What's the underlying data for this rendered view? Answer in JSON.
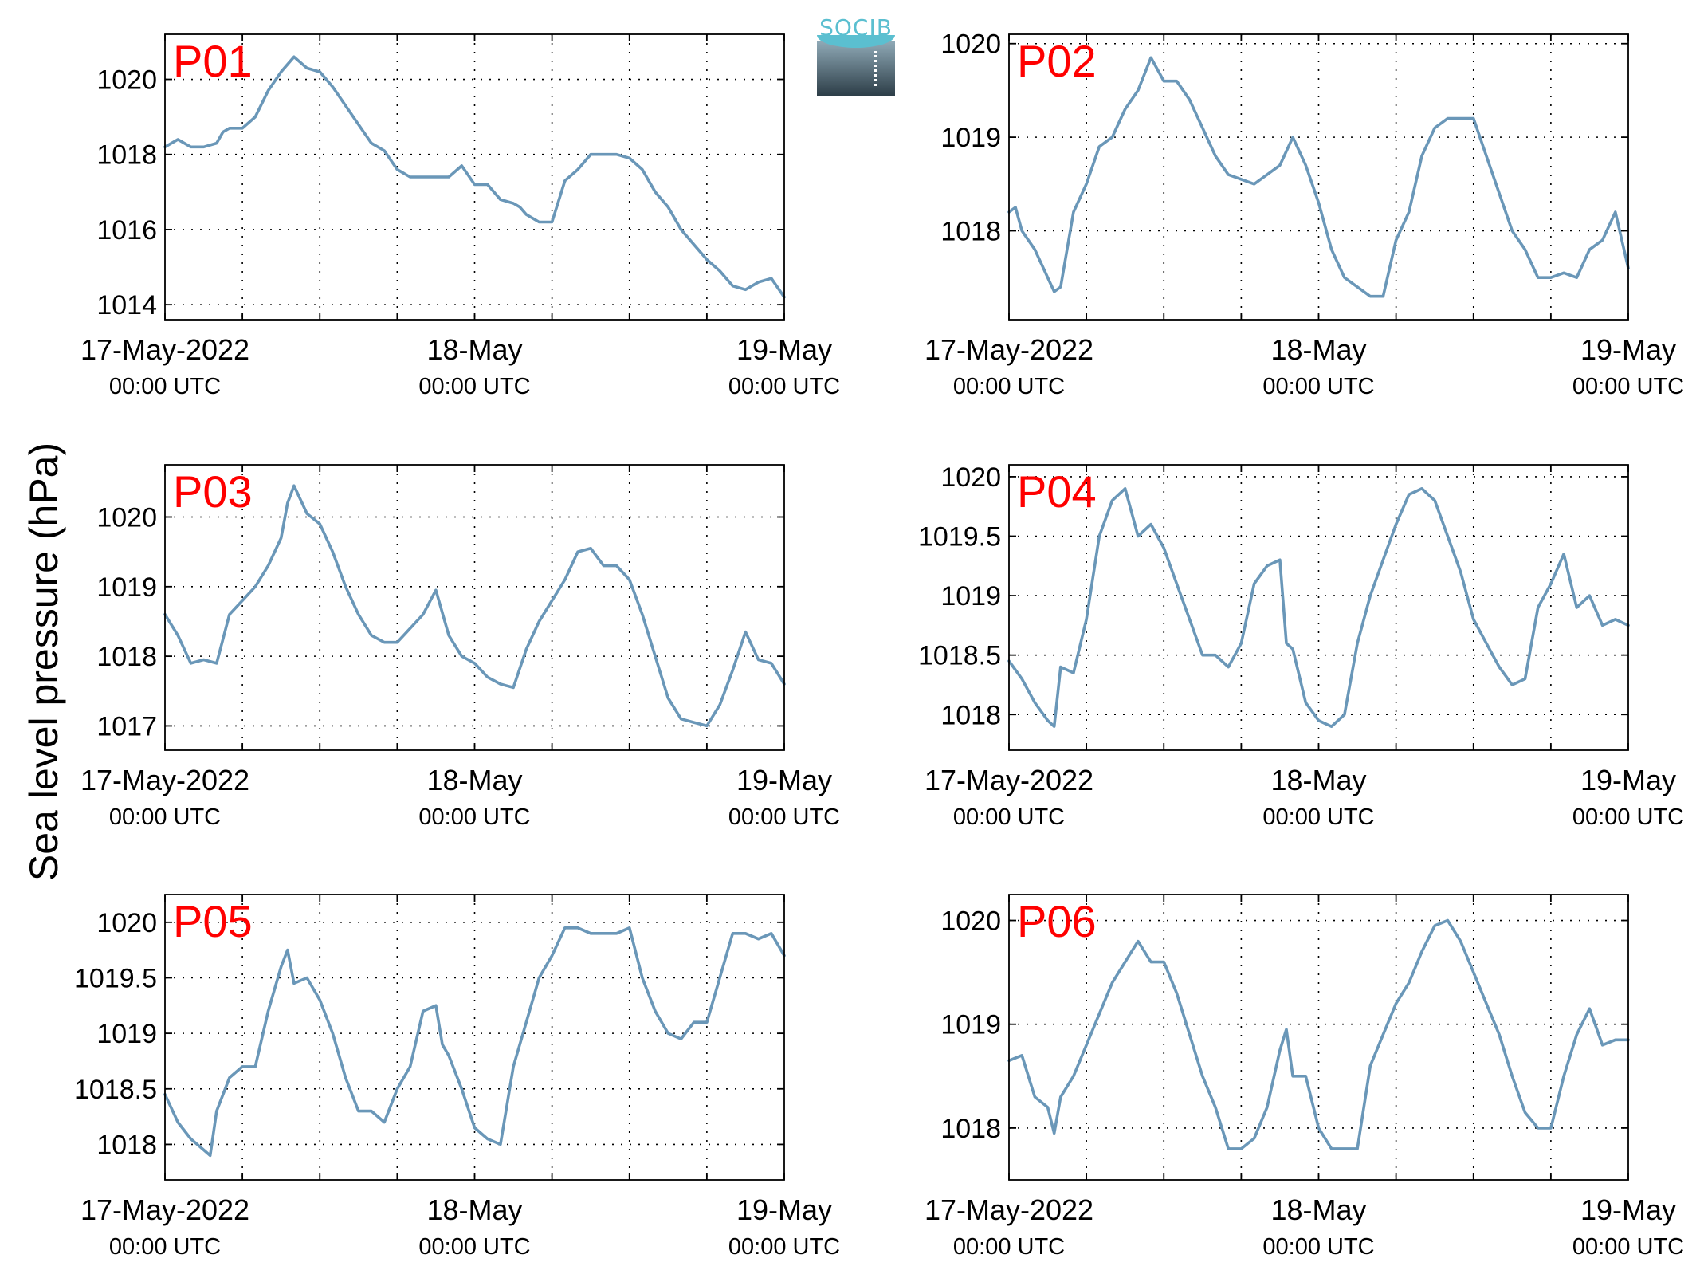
{
  "figure": {
    "ylabel": "Sea level pressure (hPa)",
    "line_color": "#6a97b8",
    "label_color": "#ff0000",
    "logo_text": "SOCIB",
    "logo_colors": {
      "accent": "#5bbfd0",
      "dark": "#2d3e48",
      "light": "#8fa9b6"
    }
  },
  "chart_data": [
    {
      "type": "line",
      "title": "P01",
      "xlim": [
        0,
        48
      ],
      "ylim": [
        1013.6,
        1021.2
      ],
      "yticks": [
        1014,
        1016,
        1018,
        1020
      ],
      "ytick_labels": [
        "1014",
        "1016",
        "1018",
        "1020"
      ],
      "xticks": [
        0,
        6,
        12,
        18,
        24,
        30,
        36,
        42,
        48
      ],
      "xtick_labels": [
        {
          "x": 0,
          "line1": "17-May-2022",
          "line2": "00:00 UTC"
        },
        {
          "x": 24,
          "line1": "18-May",
          "line2": "00:00 UTC"
        },
        {
          "x": 48,
          "line1": "19-May",
          "line2": "00:00 UTC"
        }
      ],
      "grid": true,
      "x": [
        0,
        1,
        2,
        3,
        4,
        4.5,
        5,
        6,
        7,
        8,
        9,
        9.5,
        10,
        11,
        12,
        13,
        14,
        15,
        16,
        17,
        18,
        19,
        20,
        21,
        22,
        23,
        24,
        25,
        26,
        27,
        27.5,
        28,
        29,
        30,
        31,
        32,
        33,
        34,
        35,
        36,
        37,
        38,
        39,
        40,
        41,
        42,
        43,
        44,
        45,
        46,
        47,
        48
      ],
      "values": [
        1018.2,
        1018.4,
        1018.2,
        1018.2,
        1018.3,
        1018.6,
        1018.7,
        1018.7,
        1019.0,
        1019.7,
        1020.2,
        1020.4,
        1020.6,
        1020.3,
        1020.2,
        1019.8,
        1019.3,
        1018.8,
        1018.3,
        1018.1,
        1017.6,
        1017.4,
        1017.4,
        1017.4,
        1017.4,
        1017.7,
        1017.2,
        1017.2,
        1016.8,
        1016.7,
        1016.6,
        1016.4,
        1016.2,
        1016.2,
        1017.3,
        1017.6,
        1018.0,
        1018.0,
        1018.0,
        1017.9,
        1017.6,
        1017.0,
        1016.6,
        1016.0,
        1015.6,
        1015.2,
        1014.9,
        1014.5,
        1014.4,
        1014.6,
        1014.7,
        1014.2
      ]
    },
    {
      "type": "line",
      "title": "P02",
      "xlim": [
        0,
        48
      ],
      "ylim": [
        1017.05,
        1020.1
      ],
      "yticks": [
        1018,
        1019,
        1020
      ],
      "ytick_labels": [
        "1018",
        "1019",
        "1020"
      ],
      "xticks": [
        0,
        6,
        12,
        18,
        24,
        30,
        36,
        42,
        48
      ],
      "xtick_labels": [
        {
          "x": 0,
          "line1": "17-May-2022",
          "line2": "00:00 UTC"
        },
        {
          "x": 24,
          "line1": "18-May",
          "line2": "00:00 UTC"
        },
        {
          "x": 48,
          "line1": "19-May",
          "line2": "00:00 UTC"
        }
      ],
      "grid": true,
      "x": [
        0,
        0.5,
        1,
        2,
        3,
        3.5,
        4,
        5,
        6,
        7,
        8,
        9,
        10,
        11,
        12,
        13,
        14,
        15,
        16,
        17,
        18,
        19,
        20,
        21,
        22,
        23,
        24,
        25,
        26,
        27,
        28,
        29,
        30,
        31,
        32,
        33,
        34,
        35,
        36,
        37,
        38,
        39,
        40,
        41,
        42,
        43,
        44,
        45,
        46,
        47,
        48
      ],
      "values": [
        1018.2,
        1018.25,
        1018.0,
        1017.8,
        1017.5,
        1017.35,
        1017.4,
        1018.2,
        1018.5,
        1018.9,
        1019.0,
        1019.3,
        1019.5,
        1019.85,
        1019.6,
        1019.6,
        1019.4,
        1019.1,
        1018.8,
        1018.6,
        1018.55,
        1018.5,
        1018.6,
        1018.7,
        1019.0,
        1018.7,
        1018.3,
        1017.8,
        1017.5,
        1017.4,
        1017.3,
        1017.3,
        1017.9,
        1018.2,
        1018.8,
        1019.1,
        1019.2,
        1019.2,
        1019.2,
        1018.8,
        1018.4,
        1018.0,
        1017.8,
        1017.5,
        1017.5,
        1017.55,
        1017.5,
        1017.8,
        1017.9,
        1018.2,
        1017.6
      ]
    },
    {
      "type": "line",
      "title": "P03",
      "xlim": [
        0,
        48
      ],
      "ylim": [
        1016.65,
        1020.75
      ],
      "yticks": [
        1017,
        1018,
        1019,
        1020
      ],
      "ytick_labels": [
        "1017",
        "1018",
        "1019",
        "1020"
      ],
      "xticks": [
        0,
        6,
        12,
        18,
        24,
        30,
        36,
        42,
        48
      ],
      "xtick_labels": [
        {
          "x": 0,
          "line1": "17-May-2022",
          "line2": "00:00 UTC"
        },
        {
          "x": 24,
          "line1": "18-May",
          "line2": "00:00 UTC"
        },
        {
          "x": 48,
          "line1": "19-May",
          "line2": "00:00 UTC"
        }
      ],
      "grid": true,
      "x": [
        0,
        1,
        2,
        3,
        4,
        5,
        6,
        7,
        8,
        9,
        9.5,
        10,
        11,
        12,
        13,
        14,
        15,
        16,
        17,
        18,
        19,
        20,
        21,
        22,
        23,
        24,
        25,
        26,
        27,
        28,
        29,
        30,
        31,
        32,
        33,
        34,
        35,
        36,
        37,
        38,
        39,
        40,
        41,
        42,
        43,
        44,
        45,
        46,
        47,
        48
      ],
      "values": [
        1018.6,
        1018.3,
        1017.9,
        1017.95,
        1017.9,
        1018.6,
        1018.8,
        1019.0,
        1019.3,
        1019.7,
        1020.2,
        1020.45,
        1020.05,
        1019.9,
        1019.5,
        1019.0,
        1018.6,
        1018.3,
        1018.2,
        1018.2,
        1018.4,
        1018.6,
        1018.95,
        1018.3,
        1018.0,
        1017.9,
        1017.7,
        1017.6,
        1017.55,
        1018.1,
        1018.5,
        1018.8,
        1019.1,
        1019.5,
        1019.55,
        1019.3,
        1019.3,
        1019.1,
        1018.6,
        1018.0,
        1017.4,
        1017.1,
        1017.05,
        1017.0,
        1017.3,
        1017.8,
        1018.35,
        1017.95,
        1017.9,
        1017.6
      ]
    },
    {
      "type": "line",
      "title": "P04",
      "xlim": [
        0,
        48
      ],
      "ylim": [
        1017.7,
        1020.1
      ],
      "yticks": [
        1018,
        1018.5,
        1019,
        1019.5,
        1020
      ],
      "ytick_labels": [
        "1018",
        "1018.5",
        "1019",
        "1019.5",
        "1020"
      ],
      "xticks": [
        0,
        6,
        12,
        18,
        24,
        30,
        36,
        42,
        48
      ],
      "xtick_labels": [
        {
          "x": 0,
          "line1": "17-May-2022",
          "line2": "00:00 UTC"
        },
        {
          "x": 24,
          "line1": "18-May",
          "line2": "00:00 UTC"
        },
        {
          "x": 48,
          "line1": "19-May",
          "line2": "00:00 UTC"
        }
      ],
      "grid": true,
      "x": [
        0,
        1,
        2,
        3,
        3.5,
        4,
        5,
        6,
        7,
        8,
        9,
        10,
        11,
        12,
        13,
        14,
        15,
        16,
        17,
        18,
        19,
        20,
        21,
        21.5,
        22,
        23,
        24,
        25,
        26,
        27,
        28,
        29,
        30,
        31,
        32,
        33,
        34,
        35,
        36,
        37,
        38,
        39,
        40,
        41,
        42,
        43,
        44,
        45,
        46,
        47,
        48
      ],
      "values": [
        1018.45,
        1018.3,
        1018.1,
        1017.95,
        1017.9,
        1018.4,
        1018.35,
        1018.8,
        1019.5,
        1019.8,
        1019.9,
        1019.5,
        1019.6,
        1019.4,
        1019.1,
        1018.8,
        1018.5,
        1018.5,
        1018.4,
        1018.6,
        1019.1,
        1019.25,
        1019.3,
        1018.6,
        1018.55,
        1018.1,
        1017.95,
        1017.9,
        1018.0,
        1018.6,
        1019.0,
        1019.3,
        1019.6,
        1019.85,
        1019.9,
        1019.8,
        1019.5,
        1019.2,
        1018.8,
        1018.6,
        1018.4,
        1018.25,
        1018.3,
        1018.9,
        1019.1,
        1019.35,
        1018.9,
        1019.0,
        1018.75,
        1018.8,
        1018.75
      ]
    },
    {
      "type": "line",
      "title": "P05",
      "xlim": [
        0,
        48
      ],
      "ylim": [
        1017.68,
        1020.25
      ],
      "yticks": [
        1018,
        1018.5,
        1019,
        1019.5,
        1020
      ],
      "ytick_labels": [
        "1018",
        "1018.5",
        "1019",
        "1019.5",
        "1020"
      ],
      "xticks": [
        0,
        6,
        12,
        18,
        24,
        30,
        36,
        42,
        48
      ],
      "xtick_labels": [
        {
          "x": 0,
          "line1": "17-May-2022",
          "line2": "00:00 UTC"
        },
        {
          "x": 24,
          "line1": "18-May",
          "line2": "00:00 UTC"
        },
        {
          "x": 48,
          "line1": "19-May",
          "line2": "00:00 UTC"
        }
      ],
      "grid": true,
      "x": [
        0,
        1,
        2,
        3,
        3.5,
        4,
        5,
        6,
        7,
        8,
        9,
        9.5,
        10,
        11,
        12,
        13,
        14,
        15,
        16,
        17,
        18,
        19,
        20,
        21,
        21.5,
        22,
        23,
        24,
        25,
        26,
        27,
        28,
        29,
        30,
        31,
        32,
        33,
        34,
        35,
        36,
        37,
        38,
        39,
        40,
        41,
        42,
        43,
        44,
        45,
        46,
        47,
        48
      ],
      "values": [
        1018.45,
        1018.2,
        1018.05,
        1017.95,
        1017.9,
        1018.3,
        1018.6,
        1018.7,
        1018.7,
        1019.2,
        1019.6,
        1019.75,
        1019.45,
        1019.5,
        1019.3,
        1019.0,
        1018.6,
        1018.3,
        1018.3,
        1018.2,
        1018.5,
        1018.7,
        1019.2,
        1019.25,
        1018.9,
        1018.8,
        1018.5,
        1018.15,
        1018.05,
        1018.0,
        1018.7,
        1019.1,
        1019.5,
        1019.7,
        1019.95,
        1019.95,
        1019.9,
        1019.9,
        1019.9,
        1019.95,
        1019.5,
        1019.2,
        1019.0,
        1018.95,
        1019.1,
        1019.1,
        1019.5,
        1019.9,
        1019.9,
        1019.85,
        1019.9,
        1019.7
      ]
    },
    {
      "type": "line",
      "title": "P06",
      "xlim": [
        0,
        48
      ],
      "ylim": [
        1017.5,
        1020.25
      ],
      "yticks": [
        1018,
        1019,
        1020
      ],
      "ytick_labels": [
        "1018",
        "1019",
        "1020"
      ],
      "xticks": [
        0,
        6,
        12,
        18,
        24,
        30,
        36,
        42,
        48
      ],
      "xtick_labels": [
        {
          "x": 0,
          "line1": "17-May-2022",
          "line2": "00:00 UTC"
        },
        {
          "x": 24,
          "line1": "18-May",
          "line2": "00:00 UTC"
        },
        {
          "x": 48,
          "line1": "19-May",
          "line2": "00:00 UTC"
        }
      ],
      "grid": true,
      "x": [
        0,
        1,
        2,
        3,
        3.5,
        4,
        5,
        6,
        7,
        8,
        9,
        10,
        11,
        12,
        13,
        14,
        15,
        16,
        16.5,
        17,
        18,
        19,
        20,
        21,
        21.5,
        22,
        23,
        24,
        25,
        26,
        27,
        28,
        29,
        30,
        31,
        32,
        33,
        34,
        35,
        36,
        37,
        38,
        39,
        40,
        41,
        42,
        43,
        44,
        45,
        46,
        47,
        48
      ],
      "values": [
        1018.65,
        1018.7,
        1018.3,
        1018.2,
        1017.95,
        1018.3,
        1018.5,
        1018.8,
        1019.1,
        1019.4,
        1019.6,
        1019.8,
        1019.6,
        1019.6,
        1019.3,
        1018.9,
        1018.5,
        1018.2,
        1018.0,
        1017.8,
        1017.8,
        1017.9,
        1018.2,
        1018.75,
        1018.95,
        1018.5,
        1018.5,
        1018.0,
        1017.8,
        1017.8,
        1017.8,
        1018.6,
        1018.9,
        1019.2,
        1019.4,
        1019.7,
        1019.95,
        1020.0,
        1019.8,
        1019.5,
        1019.2,
        1018.9,
        1018.5,
        1018.15,
        1018.0,
        1018.0,
        1018.5,
        1018.9,
        1019.15,
        1018.8,
        1018.85,
        1018.85
      ]
    }
  ]
}
